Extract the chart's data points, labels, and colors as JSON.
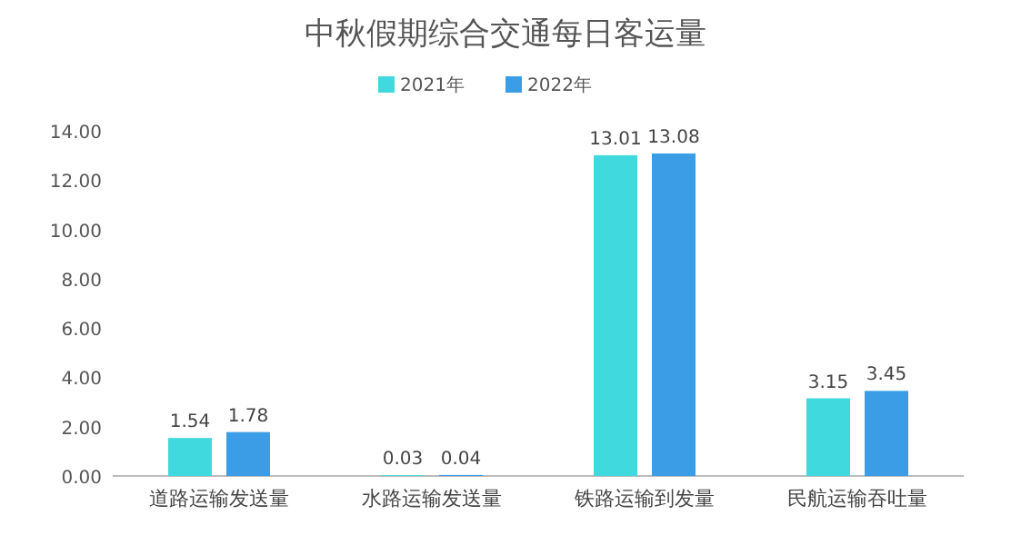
{
  "chart_data": {
    "type": "bar",
    "title": "中秋假期综合交通每日客运量",
    "categories": [
      "道路运输发送量",
      "水路运输发送量",
      "铁路运输到发量",
      "民航运输吞吐量"
    ],
    "series": [
      {
        "name": "2021年",
        "color": "#40d9dd",
        "values": [
          1.54,
          0.03,
          13.01,
          3.15
        ]
      },
      {
        "name": "2022年",
        "color": "#3a9de6",
        "values": [
          1.78,
          0.04,
          13.08,
          3.45
        ]
      }
    ],
    "ylim": [
      0,
      14
    ],
    "yticks": [
      {
        "value": 0,
        "label": "0.00"
      },
      {
        "value": 2,
        "label": "2.00"
      },
      {
        "value": 4,
        "label": "4.00"
      },
      {
        "value": 6,
        "label": "6.00"
      },
      {
        "value": 8,
        "label": "8.00"
      },
      {
        "value": 10,
        "label": "10.00"
      },
      {
        "value": 12,
        "label": "12.00"
      },
      {
        "value": 14,
        "label": "14.00"
      }
    ],
    "data_labels": true,
    "legend": "top",
    "grid": false
  }
}
